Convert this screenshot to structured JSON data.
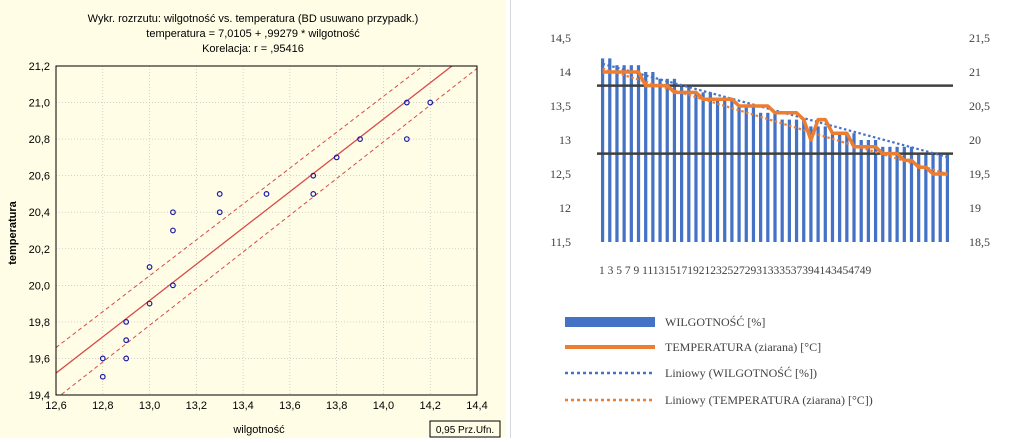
{
  "chart_data": [
    {
      "type": "scatter",
      "title_lines": [
        "Wykr. rozrzutu: wilgotność vs. temperatura (BD usuwano przypadk.)",
        "temperatura = 7,0105 + ,99279 * wilgotność",
        "Korelacja: r =   ,95416"
      ],
      "xlabel": "wilgotność",
      "ylabel": "temperatura",
      "xlim": [
        12.6,
        14.4
      ],
      "ylim": [
        19.4,
        21.2
      ],
      "xticks": [
        "12,6",
        "12,8",
        "13,0",
        "13,2",
        "13,4",
        "13,6",
        "13,8",
        "14,0",
        "14,2",
        "14,4"
      ],
      "yticks": [
        "19,4",
        "19,6",
        "19,8",
        "20,0",
        "20,2",
        "20,4",
        "20,6",
        "20,8",
        "21,0",
        "21,2"
      ],
      "legend_box": "0,95 Prz.Ufn.",
      "regression": {
        "intercept": 7.0105,
        "slope": 0.99279
      },
      "confidence_offset": 0.09,
      "points": [
        [
          12.8,
          19.6
        ],
        [
          12.8,
          19.5
        ],
        [
          12.9,
          19.8
        ],
        [
          12.9,
          19.7
        ],
        [
          12.9,
          19.6
        ],
        [
          13.0,
          20.1
        ],
        [
          13.0,
          19.9
        ],
        [
          13.1,
          20.4
        ],
        [
          13.1,
          20.3
        ],
        [
          13.1,
          20.0
        ],
        [
          13.3,
          20.5
        ],
        [
          13.3,
          20.4
        ],
        [
          13.5,
          20.5
        ],
        [
          13.7,
          20.6
        ],
        [
          13.7,
          20.5
        ],
        [
          13.8,
          20.7
        ],
        [
          13.9,
          20.8
        ],
        [
          14.1,
          21.0
        ],
        [
          14.1,
          20.8
        ],
        [
          14.2,
          21.0
        ]
      ],
      "grid": true,
      "colors": {
        "points": "#1a1aa6",
        "line": "#d84a4a",
        "background": "#fffde6"
      }
    },
    {
      "type": "bar-line-combo",
      "left_axis": {
        "min": 11.5,
        "max": 14.5,
        "ticks": [
          "11,5",
          "12",
          "12,5",
          "13",
          "13,5",
          "14",
          "14,5"
        ]
      },
      "right_axis": {
        "min": 18.5,
        "max": 21.5,
        "ticks": [
          "18,5",
          "19",
          "19,5",
          "20",
          "20,5",
          "21",
          "21,5"
        ]
      },
      "x_tick_text": "1 3 5 7 9 1113151719212325272931333537394143454749",
      "categories_count": 49,
      "series": [
        {
          "name": "WILGOTNOŚĆ [%]",
          "kind": "bar",
          "axis": "left",
          "color": "#4472c4",
          "values": [
            14.2,
            14.2,
            14.1,
            14.1,
            14.1,
            14.1,
            14.0,
            14.0,
            13.9,
            13.9,
            13.9,
            13.8,
            13.8,
            13.7,
            13.7,
            13.7,
            13.6,
            13.6,
            13.6,
            13.5,
            13.5,
            13.5,
            13.4,
            13.4,
            13.4,
            13.3,
            13.3,
            13.3,
            13.3,
            13.2,
            13.2,
            13.2,
            13.1,
            13.1,
            13.1,
            13.1,
            13.0,
            13.0,
            13.0,
            12.9,
            12.9,
            12.9,
            12.9,
            12.9,
            12.8,
            12.8,
            12.8,
            12.8,
            12.8
          ]
        },
        {
          "name": "TEMPERATURA (ziarana) [°C]",
          "kind": "line",
          "axis": "right",
          "color": "#ed7d31",
          "values": [
            21.0,
            21.0,
            21.0,
            21.0,
            21.0,
            21.0,
            20.8,
            20.8,
            20.8,
            20.8,
            20.7,
            20.7,
            20.7,
            20.7,
            20.6,
            20.6,
            20.6,
            20.6,
            20.6,
            20.5,
            20.5,
            20.5,
            20.5,
            20.5,
            20.4,
            20.4,
            20.4,
            20.4,
            20.3,
            20.0,
            20.3,
            20.3,
            20.1,
            20.1,
            20.1,
            19.9,
            19.9,
            19.9,
            19.9,
            19.8,
            19.8,
            19.8,
            19.7,
            19.7,
            19.6,
            19.6,
            19.5,
            19.5,
            19.5
          ]
        },
        {
          "name": "Liniowy (WILGOTNOŚĆ [%])",
          "kind": "trend",
          "axis": "left",
          "color": "#4472c4",
          "from": 14.12,
          "to": 12.75
        },
        {
          "name": "Liniowy (TEMPERATURA (ziarana) [°C])",
          "kind": "trend",
          "axis": "right",
          "color": "#ed7d31",
          "from": 21.05,
          "to": 19.5
        }
      ],
      "horizontal_lines_left_axis": [
        13.8,
        12.8
      ],
      "legend_position": "bottom"
    }
  ]
}
